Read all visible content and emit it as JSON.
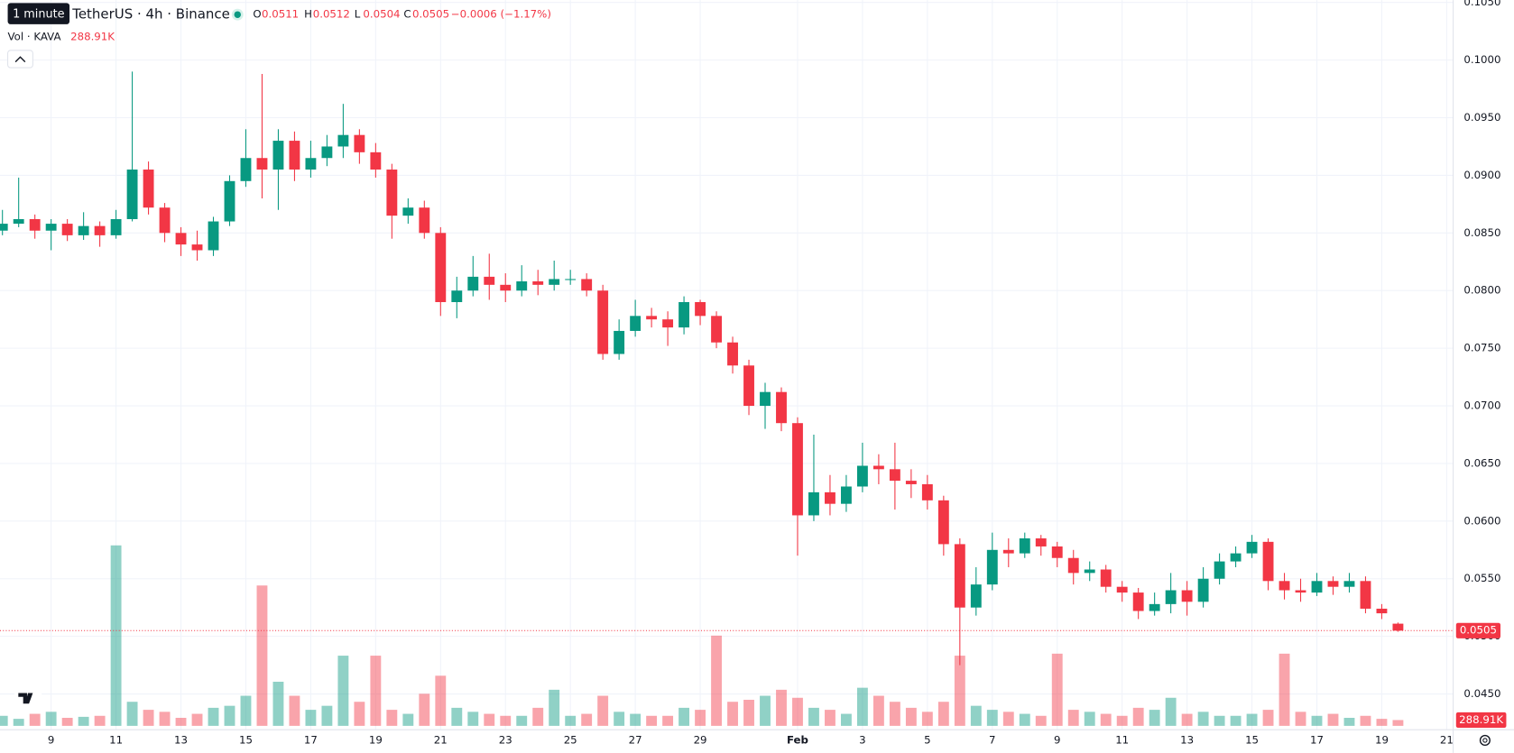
{
  "chart_data": {
    "type": "candlestick",
    "tooltip": "1 minute",
    "title": "TetherUS · 4h · Binance",
    "ohlc_letters": [
      "O",
      "H",
      "L",
      "C"
    ],
    "change_label": "−0.0006 (−1.17%)",
    "volume_title": "Vol · KAVA",
    "last_volume_label": "288.91K",
    "up_color": "#089981",
    "down_color": "#f23645",
    "grid": true,
    "open": [
      0.0852,
      0.0858,
      0.0862,
      0.0852,
      0.0858,
      0.0848,
      0.0856,
      0.0848,
      0.0862,
      0.0905,
      0.0872,
      0.085,
      0.084,
      0.0835,
      0.086,
      0.0895,
      0.0915,
      0.0905,
      0.093,
      0.0905,
      0.0915,
      0.0925,
      0.0935,
      0.092,
      0.0905,
      0.0865,
      0.0872,
      0.085,
      0.079,
      0.08,
      0.0812,
      0.0805,
      0.08,
      0.0808,
      0.0805,
      0.081,
      0.081,
      0.08,
      0.0745,
      0.0765,
      0.0778,
      0.0775,
      0.0768,
      0.079,
      0.0778,
      0.0755,
      0.0735,
      0.07,
      0.0712,
      0.0685,
      0.0605,
      0.0625,
      0.0615,
      0.063,
      0.0648,
      0.0645,
      0.0635,
      0.0632,
      0.0618,
      0.058,
      0.0525,
      0.0545,
      0.0575,
      0.0572,
      0.0585,
      0.0578,
      0.0568,
      0.0555,
      0.0558,
      0.0543,
      0.0538,
      0.0522,
      0.0528,
      0.054,
      0.053,
      0.055,
      0.0565,
      0.0572,
      0.0582,
      0.0548,
      0.054,
      0.0538,
      0.0548,
      0.0543,
      0.0548,
      0.0524,
      0.0511
    ],
    "high": [
      0.087,
      0.0898,
      0.0866,
      0.0862,
      0.0862,
      0.0868,
      0.086,
      0.087,
      0.099,
      0.0912,
      0.0876,
      0.0855,
      0.0852,
      0.0864,
      0.09,
      0.094,
      0.0988,
      0.094,
      0.0938,
      0.093,
      0.0935,
      0.0962,
      0.094,
      0.0928,
      0.091,
      0.088,
      0.0878,
      0.0855,
      0.0812,
      0.083,
      0.0832,
      0.0815,
      0.0822,
      0.0818,
      0.0826,
      0.0818,
      0.0815,
      0.0805,
      0.0775,
      0.0792,
      0.0785,
      0.0782,
      0.0795,
      0.0792,
      0.0782,
      0.076,
      0.074,
      0.072,
      0.0716,
      0.069,
      0.0675,
      0.064,
      0.064,
      0.0668,
      0.0658,
      0.0668,
      0.0645,
      0.064,
      0.0622,
      0.0585,
      0.056,
      0.059,
      0.0585,
      0.059,
      0.0588,
      0.0582,
      0.0575,
      0.0565,
      0.0562,
      0.0548,
      0.0542,
      0.0538,
      0.0555,
      0.0548,
      0.056,
      0.0572,
      0.0578,
      0.0588,
      0.0585,
      0.0555,
      0.055,
      0.0555,
      0.0552,
      0.0555,
      0.0552,
      0.0528,
      0.0512
    ],
    "low": [
      0.0848,
      0.0855,
      0.0845,
      0.0835,
      0.0843,
      0.0844,
      0.0838,
      0.0845,
      0.086,
      0.0866,
      0.0842,
      0.083,
      0.0826,
      0.083,
      0.0856,
      0.089,
      0.088,
      0.087,
      0.0895,
      0.0898,
      0.0908,
      0.0915,
      0.091,
      0.0898,
      0.0845,
      0.0858,
      0.0845,
      0.0778,
      0.0776,
      0.0795,
      0.0792,
      0.079,
      0.0795,
      0.0796,
      0.08,
      0.0805,
      0.0795,
      0.074,
      0.074,
      0.076,
      0.0768,
      0.0752,
      0.0762,
      0.077,
      0.075,
      0.0728,
      0.0692,
      0.068,
      0.0678,
      0.057,
      0.06,
      0.0605,
      0.0608,
      0.0625,
      0.0632,
      0.061,
      0.062,
      0.061,
      0.057,
      0.0475,
      0.0518,
      0.054,
      0.056,
      0.0568,
      0.057,
      0.056,
      0.0545,
      0.0548,
      0.0538,
      0.053,
      0.0515,
      0.0518,
      0.052,
      0.0518,
      0.0525,
      0.0545,
      0.056,
      0.0568,
      0.054,
      0.0532,
      0.053,
      0.0535,
      0.0536,
      0.0538,
      0.052,
      0.0515,
      0.0504
    ],
    "close": [
      0.0858,
      0.0862,
      0.0852,
      0.0858,
      0.0848,
      0.0856,
      0.0848,
      0.0862,
      0.0905,
      0.0872,
      0.085,
      0.084,
      0.0835,
      0.086,
      0.0895,
      0.0915,
      0.0905,
      0.093,
      0.0905,
      0.0915,
      0.0925,
      0.0935,
      0.092,
      0.0905,
      0.0865,
      0.0872,
      0.085,
      0.079,
      0.08,
      0.0812,
      0.0805,
      0.08,
      0.0808,
      0.0805,
      0.081,
      0.081,
      0.08,
      0.0745,
      0.0765,
      0.0778,
      0.0775,
      0.0768,
      0.079,
      0.0778,
      0.0755,
      0.0735,
      0.07,
      0.0712,
      0.0685,
      0.0605,
      0.0625,
      0.0615,
      0.063,
      0.0648,
      0.0645,
      0.0635,
      0.0632,
      0.0618,
      0.058,
      0.0525,
      0.0545,
      0.0575,
      0.0572,
      0.0585,
      0.0578,
      0.0568,
      0.0555,
      0.0558,
      0.0543,
      0.0538,
      0.0522,
      0.0528,
      0.054,
      0.053,
      0.055,
      0.0565,
      0.0572,
      0.0582,
      0.0548,
      0.054,
      0.0538,
      0.0548,
      0.0543,
      0.0548,
      0.0524,
      0.052,
      0.0505
    ],
    "volume": [
      500000,
      350000,
      600000,
      700000,
      400000,
      450000,
      500000,
      9000000,
      1200000,
      800000,
      700000,
      400000,
      600000,
      900000,
      1000000,
      1500000,
      7000000,
      2200000,
      1500000,
      800000,
      1000000,
      3500000,
      1200000,
      3500000,
      800000,
      600000,
      1600000,
      2500000,
      900000,
      700000,
      600000,
      500000,
      500000,
      900000,
      1800000,
      500000,
      600000,
      1500000,
      700000,
      600000,
      500000,
      500000,
      900000,
      800000,
      4500000,
      1200000,
      1300000,
      1500000,
      1800000,
      1400000,
      900000,
      800000,
      600000,
      1900000,
      1500000,
      1200000,
      900000,
      700000,
      1200000,
      3500000,
      1000000,
      800000,
      700000,
      600000,
      500000,
      3600000,
      800000,
      700000,
      600000,
      500000,
      900000,
      800000,
      1400000,
      600000,
      700000,
      500000,
      500000,
      600000,
      800000,
      3600000,
      700000,
      500000,
      600000,
      400000,
      500000,
      350000,
      288910
    ],
    "xlim": [
      -0.15,
      89.4
    ],
    "xticks": [
      {
        "value": 3,
        "label": "9"
      },
      {
        "value": 7,
        "label": "11"
      },
      {
        "value": 11,
        "label": "13"
      },
      {
        "value": 15,
        "label": "15"
      },
      {
        "value": 19,
        "label": "17"
      },
      {
        "value": 23,
        "label": "19"
      },
      {
        "value": 27,
        "label": "21"
      },
      {
        "value": 31,
        "label": "23"
      },
      {
        "value": 35,
        "label": "25"
      },
      {
        "value": 39,
        "label": "27"
      },
      {
        "value": 43,
        "label": "29"
      },
      {
        "value": 49,
        "label": "Feb"
      },
      {
        "value": 53,
        "label": "3"
      },
      {
        "value": 57,
        "label": "5"
      },
      {
        "value": 61,
        "label": "7"
      },
      {
        "value": 65,
        "label": "9"
      },
      {
        "value": 69,
        "label": "11"
      },
      {
        "value": 73,
        "label": "13"
      },
      {
        "value": 77,
        "label": "15"
      },
      {
        "value": 81,
        "label": "17"
      },
      {
        "value": 85,
        "label": "19"
      },
      {
        "value": 89,
        "label": "21"
      }
    ],
    "ylim": [
      0.0419,
      0.1052
    ],
    "yticks": [
      {
        "value": 0.045,
        "label": "0.0450"
      },
      {
        "value": 0.05,
        "label": "0.0500"
      },
      {
        "value": 0.055,
        "label": "0.0550"
      },
      {
        "value": 0.06,
        "label": "0.0600"
      },
      {
        "value": 0.065,
        "label": "0.0650"
      },
      {
        "value": 0.07,
        "label": "0.0700"
      },
      {
        "value": 0.075,
        "label": "0.0750"
      },
      {
        "value": 0.08,
        "label": "0.0800"
      },
      {
        "value": 0.085,
        "label": "0.0850"
      },
      {
        "value": 0.09,
        "label": "0.0900"
      },
      {
        "value": 0.095,
        "label": "0.0950"
      },
      {
        "value": 0.1,
        "label": "0.1000"
      },
      {
        "value": 0.105,
        "label": "0.1050"
      }
    ]
  }
}
